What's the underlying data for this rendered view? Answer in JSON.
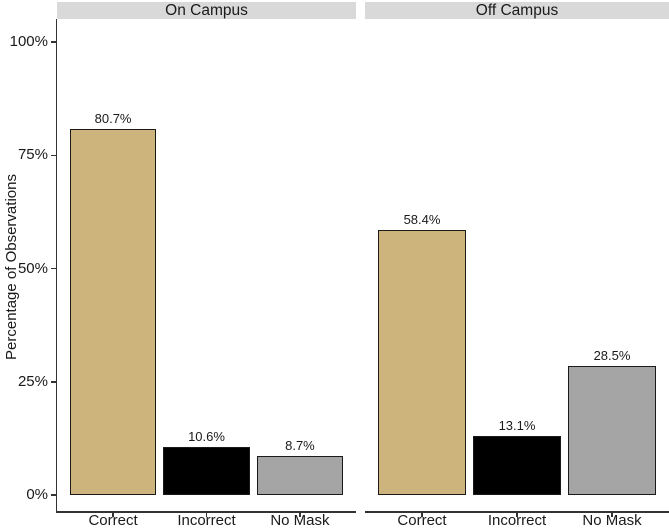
{
  "chart_data": {
    "type": "bar",
    "title": "",
    "ylabel": "Percentage of Observations",
    "xlabel": "",
    "ylim": [
      0,
      100
    ],
    "grid": false,
    "legend": "none",
    "facets": [
      "On Campus",
      "Off Campus"
    ],
    "categories": [
      "Correct",
      "Incorrect",
      "No Mask"
    ],
    "series": [
      {
        "name": "On Campus",
        "values": [
          80.7,
          10.6,
          8.7
        ],
        "value_labels": [
          "80.7%",
          "10.6%",
          "8.7%"
        ]
      },
      {
        "name": "Off Campus",
        "values": [
          58.4,
          13.1,
          28.5
        ],
        "value_labels": [
          "58.4%",
          "13.1%",
          "28.5%"
        ]
      }
    ],
    "y_ticks": [
      {
        "label": "100%",
        "value": 100
      },
      {
        "label": "75%",
        "value": 75
      },
      {
        "label": "50%",
        "value": 50
      },
      {
        "label": "25%",
        "value": 25
      },
      {
        "label": "0%",
        "value": 0
      }
    ],
    "bar_colors": [
      "#CCB47C",
      "#000000",
      "#A5A5A5"
    ],
    "bar_border_color": "#1A1A1A",
    "strip_background": "#D9D9D9",
    "axis_color": "#333333",
    "text_color": "#1A1A1A"
  }
}
